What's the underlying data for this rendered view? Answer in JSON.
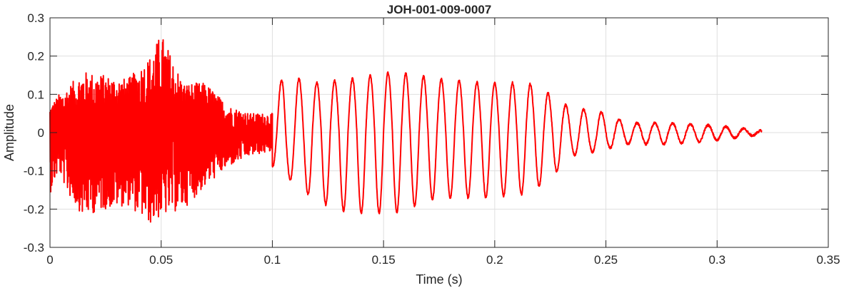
{
  "chart_data": {
    "type": "line",
    "title": "JOH-001-009-0007",
    "xlabel": "Time (s)",
    "ylabel": "Amplitude",
    "xlim": [
      0,
      0.35
    ],
    "ylim": [
      -0.3,
      0.3
    ],
    "grid": true,
    "x_ticks": [
      0,
      0.05,
      0.1,
      0.15,
      0.2,
      0.25,
      0.3,
      0.35
    ],
    "x_tick_labels": [
      "0",
      "0.05",
      "0.1",
      "0.15",
      "0.2",
      "0.25",
      "0.3",
      "0.35"
    ],
    "y_ticks": [
      -0.3,
      -0.2,
      -0.1,
      0,
      0.1,
      0.2,
      0.3
    ],
    "y_tick_labels": [
      "-0.3",
      "-0.2",
      "-0.1",
      "0",
      "0.1",
      "0.2",
      "0.3"
    ],
    "line_color": "#ff0000",
    "series": [
      {
        "noisy_segment": {
          "x_range": [
            0,
            0.1
          ],
          "envelope": [
            {
              "x": 0.0,
              "max": 0.07,
              "min": -0.16
            },
            {
              "x": 0.004,
              "max": 0.1,
              "min": -0.1
            },
            {
              "x": 0.008,
              "max": 0.12,
              "min": -0.16
            },
            {
              "x": 0.015,
              "max": 0.16,
              "min": -0.22
            },
            {
              "x": 0.025,
              "max": 0.15,
              "min": -0.2
            },
            {
              "x": 0.035,
              "max": 0.14,
              "min": -0.19
            },
            {
              "x": 0.045,
              "max": 0.2,
              "min": -0.24
            },
            {
              "x": 0.05,
              "max": 0.26,
              "min": -0.22
            },
            {
              "x": 0.06,
              "max": 0.13,
              "min": -0.2
            },
            {
              "x": 0.07,
              "max": 0.13,
              "min": -0.14
            },
            {
              "x": 0.08,
              "max": 0.07,
              "min": -0.09
            },
            {
              "x": 0.09,
              "max": 0.05,
              "min": -0.06
            },
            {
              "x": 0.1,
              "max": 0.05,
              "min": -0.05
            }
          ]
        },
        "oscillatory_segment": {
          "x_range": [
            0.1,
            0.32
          ],
          "frequency_hz": 125,
          "envelope": [
            {
              "x": 0.1,
              "max": 0.08,
              "min": -0.09
            },
            {
              "x": 0.105,
              "max": 0.15,
              "min": -0.11
            },
            {
              "x": 0.12,
              "max": 0.13,
              "min": -0.18
            },
            {
              "x": 0.135,
              "max": 0.14,
              "min": -0.21
            },
            {
              "x": 0.155,
              "max": 0.16,
              "min": -0.21
            },
            {
              "x": 0.175,
              "max": 0.14,
              "min": -0.17
            },
            {
              "x": 0.195,
              "max": 0.13,
              "min": -0.17
            },
            {
              "x": 0.215,
              "max": 0.13,
              "min": -0.16
            },
            {
              "x": 0.225,
              "max": 0.1,
              "min": -0.12
            },
            {
              "x": 0.235,
              "max": 0.06,
              "min": -0.06
            },
            {
              "x": 0.245,
              "max": 0.06,
              "min": -0.05
            },
            {
              "x": 0.26,
              "max": 0.025,
              "min": -0.03
            },
            {
              "x": 0.28,
              "max": 0.025,
              "min": -0.03
            },
            {
              "x": 0.3,
              "max": 0.018,
              "min": -0.02
            },
            {
              "x": 0.32,
              "max": 0.005,
              "min": -0.005
            }
          ]
        }
      }
    ]
  }
}
